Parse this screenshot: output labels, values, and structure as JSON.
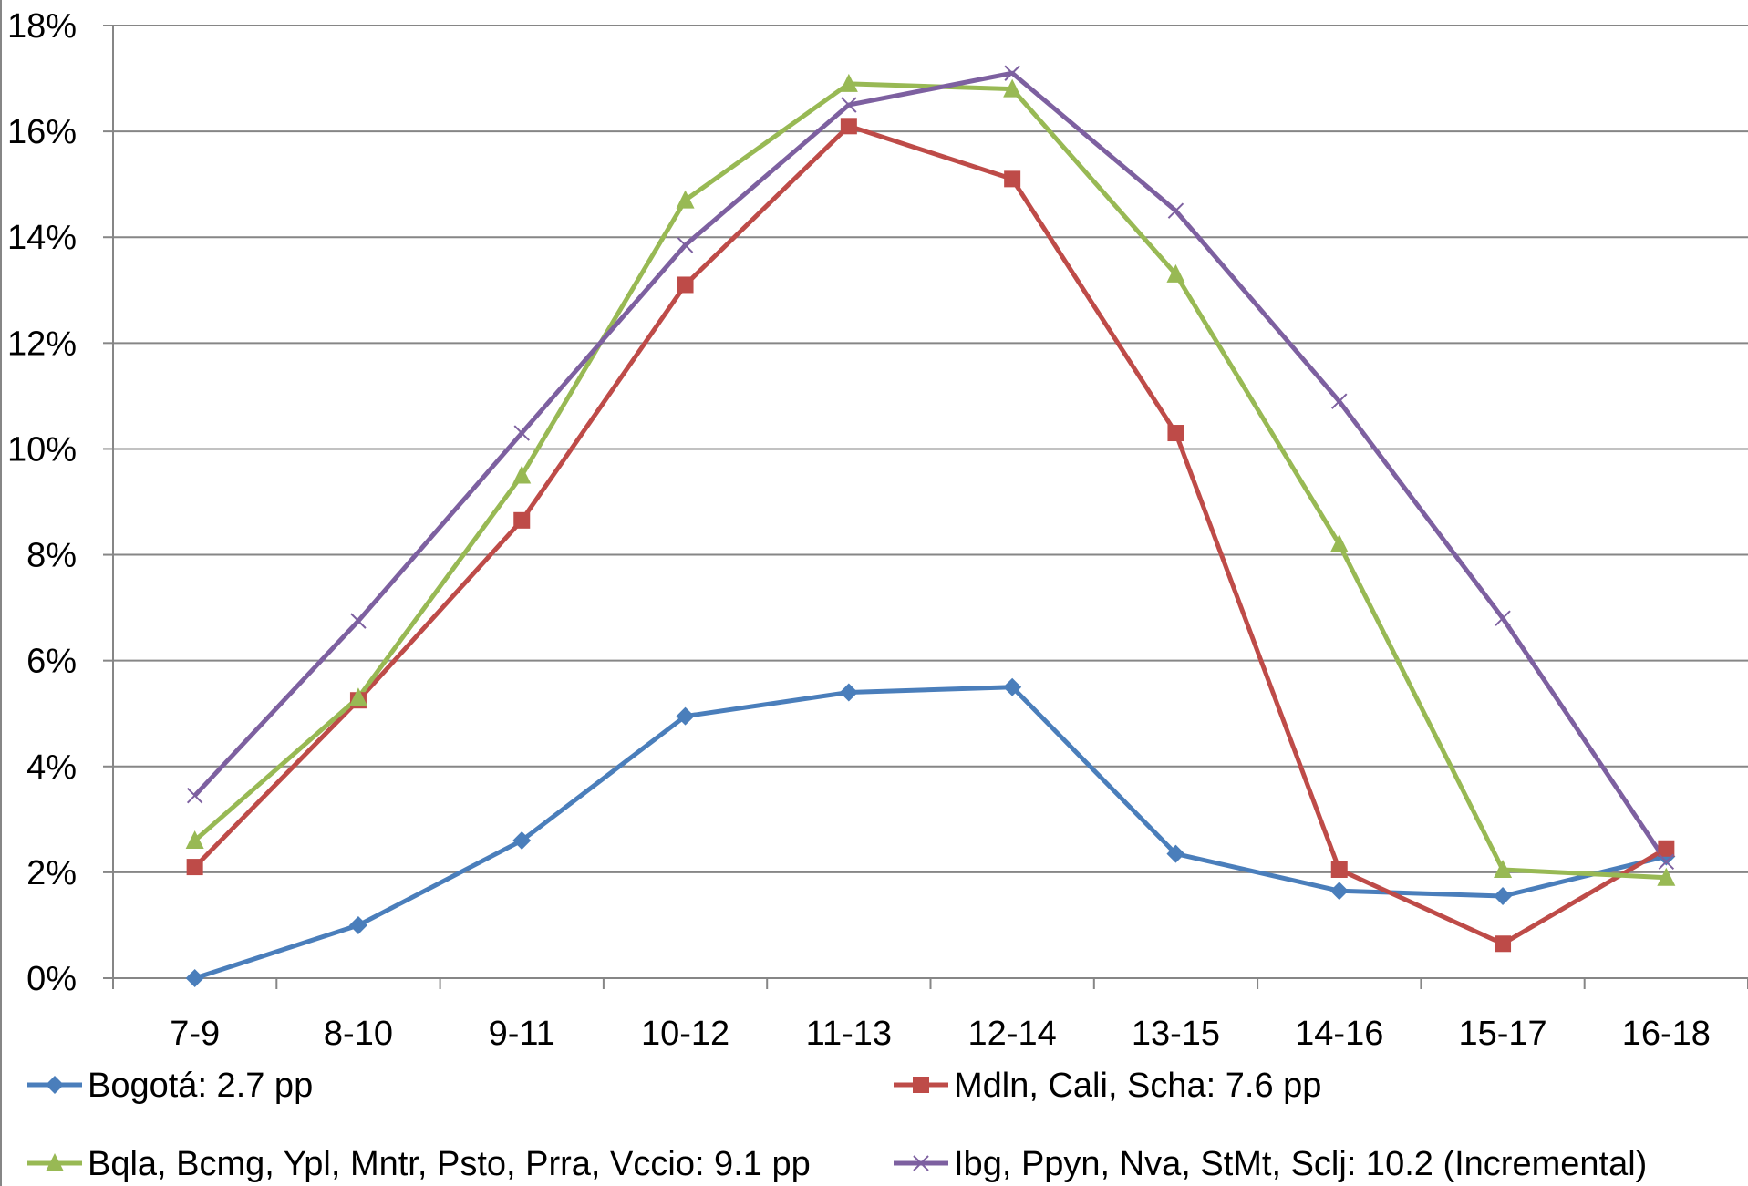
{
  "chart_data": {
    "type": "line",
    "title": "",
    "xlabel": "",
    "ylabel": "",
    "categories": [
      "7-9",
      "8-10",
      "9-11",
      "10-12",
      "11-13",
      "12-14",
      "13-15",
      "14-16",
      "15-17",
      "16-18"
    ],
    "ylim": [
      0,
      18
    ],
    "yticks": [
      "0%",
      "2%",
      "4%",
      "6%",
      "8%",
      "10%",
      "12%",
      "14%",
      "16%",
      "18%"
    ],
    "grid": true,
    "legend_position": "bottom",
    "series": [
      {
        "name": "Bogotá: 2.7 pp",
        "color": "#4a7ebb",
        "marker": "diamond",
        "values": [
          0.0,
          1.0,
          2.6,
          4.95,
          5.4,
          5.5,
          2.35,
          1.65,
          1.55,
          2.3
        ]
      },
      {
        "name": "Mdln, Cali, Scha: 7.6 pp",
        "color": "#be4b48",
        "marker": "square",
        "values": [
          2.1,
          5.25,
          8.65,
          13.1,
          16.1,
          15.1,
          10.3,
          2.05,
          0.65,
          2.45
        ]
      },
      {
        "name": "Bqla, Bcmg, Ypl, Mntr, Psto, Prra, Vccio: 9.1 pp",
        "color": "#98b954",
        "marker": "triangle",
        "values": [
          2.6,
          5.3,
          9.5,
          14.7,
          16.9,
          16.8,
          13.3,
          8.2,
          2.05,
          1.9
        ]
      },
      {
        "name": "Ibg, Ppyn, Nva, StMt, Sclj: 10.2 (Incremental)",
        "color": "#7d60a0",
        "marker": "x",
        "values": [
          3.45,
          6.75,
          10.3,
          13.85,
          16.5,
          17.1,
          14.5,
          10.9,
          6.8,
          2.2
        ]
      }
    ]
  }
}
